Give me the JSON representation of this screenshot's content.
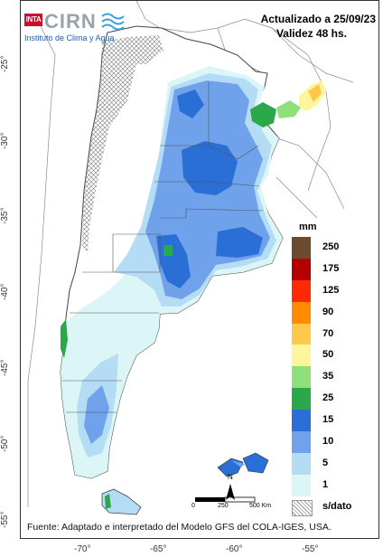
{
  "header": {
    "updated": "Actualizado a 25/09/23",
    "validity": "Validez 48 hs."
  },
  "logo": {
    "inta": "INTA",
    "cirn": "CIRN",
    "institute": "Instituto de Clima y Agua"
  },
  "legend": {
    "unit": "mm",
    "items": [
      {
        "label": "250",
        "color": "#6b4a2f"
      },
      {
        "label": "175",
        "color": "#b40000"
      },
      {
        "label": "125",
        "color": "#ff2a00"
      },
      {
        "label": "90",
        "color": "#ff8c00"
      },
      {
        "label": "70",
        "color": "#ffc84a"
      },
      {
        "label": "50",
        "color": "#fff59a"
      },
      {
        "label": "35",
        "color": "#8fe07a"
      },
      {
        "label": "25",
        "color": "#2aa84a"
      },
      {
        "label": "15",
        "color": "#2a6fd6"
      },
      {
        "label": "10",
        "color": "#6fa2ea"
      },
      {
        "label": "5",
        "color": "#b4dcf4"
      },
      {
        "label": "1",
        "color": "#dcf6f8"
      },
      {
        "label": "s/dato",
        "color": "hatch"
      }
    ]
  },
  "axes": {
    "lat_labels": [
      "-25°",
      "-30°",
      "-35°",
      "-40°",
      "-45°",
      "-50°",
      "-55°"
    ],
    "lon_labels": [
      "-70°",
      "-65°",
      "-60°",
      "-55°"
    ]
  },
  "scale": {
    "labels": [
      "0",
      "250",
      "500 Km"
    ]
  },
  "north_label": "N",
  "source": "Fuente: Adaptado e interpretado del Modelo GFS del COLA-IGES, USA."
}
